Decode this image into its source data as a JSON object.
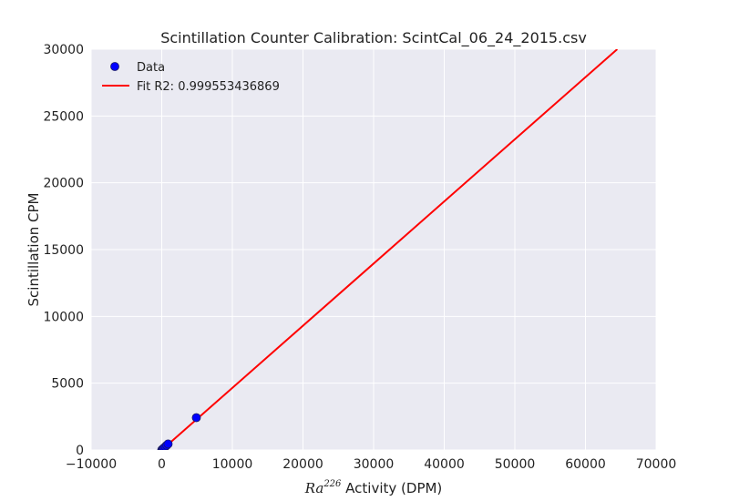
{
  "chart_data": {
    "type": "scatter",
    "title": "Scintillation Counter Calibration: ScintCal_06_24_2015.csv",
    "xlabel": {
      "math_main": "Ra",
      "math_sup": "226",
      "text": " Activity (DPM)"
    },
    "ylabel": "Scintillation CPM",
    "xlim": [
      -10000,
      70000
    ],
    "ylim": [
      0,
      30000
    ],
    "grid": true,
    "legend_position": "top-left",
    "x_ticks": [
      -10000,
      0,
      10000,
      20000,
      30000,
      40000,
      50000,
      60000,
      70000
    ],
    "x_tick_labels": [
      "−10000",
      "0",
      "10000",
      "20000",
      "30000",
      "40000",
      "50000",
      "60000",
      "70000"
    ],
    "y_ticks": [
      0,
      5000,
      10000,
      15000,
      20000,
      25000,
      30000
    ],
    "y_tick_labels": [
      "0",
      "5000",
      "10000",
      "15000",
      "20000",
      "25000",
      "30000"
    ],
    "series": [
      {
        "name": "Data",
        "kind": "scatter",
        "color": "#0000ff",
        "x": [
          0,
          60,
          100,
          200,
          300,
          500,
          700,
          900,
          4900
        ],
        "y": [
          0,
          30,
          50,
          100,
          150,
          250,
          350,
          450,
          2420
        ]
      },
      {
        "name": "Fit R2: 0.999553436869",
        "kind": "line",
        "color": "#ff0000",
        "x": [
          0,
          64500
        ],
        "y": [
          0,
          30000
        ]
      }
    ],
    "colors": {
      "plot_background": "#eaeaf2",
      "grid": "#ffffff",
      "text": "#222222"
    }
  }
}
